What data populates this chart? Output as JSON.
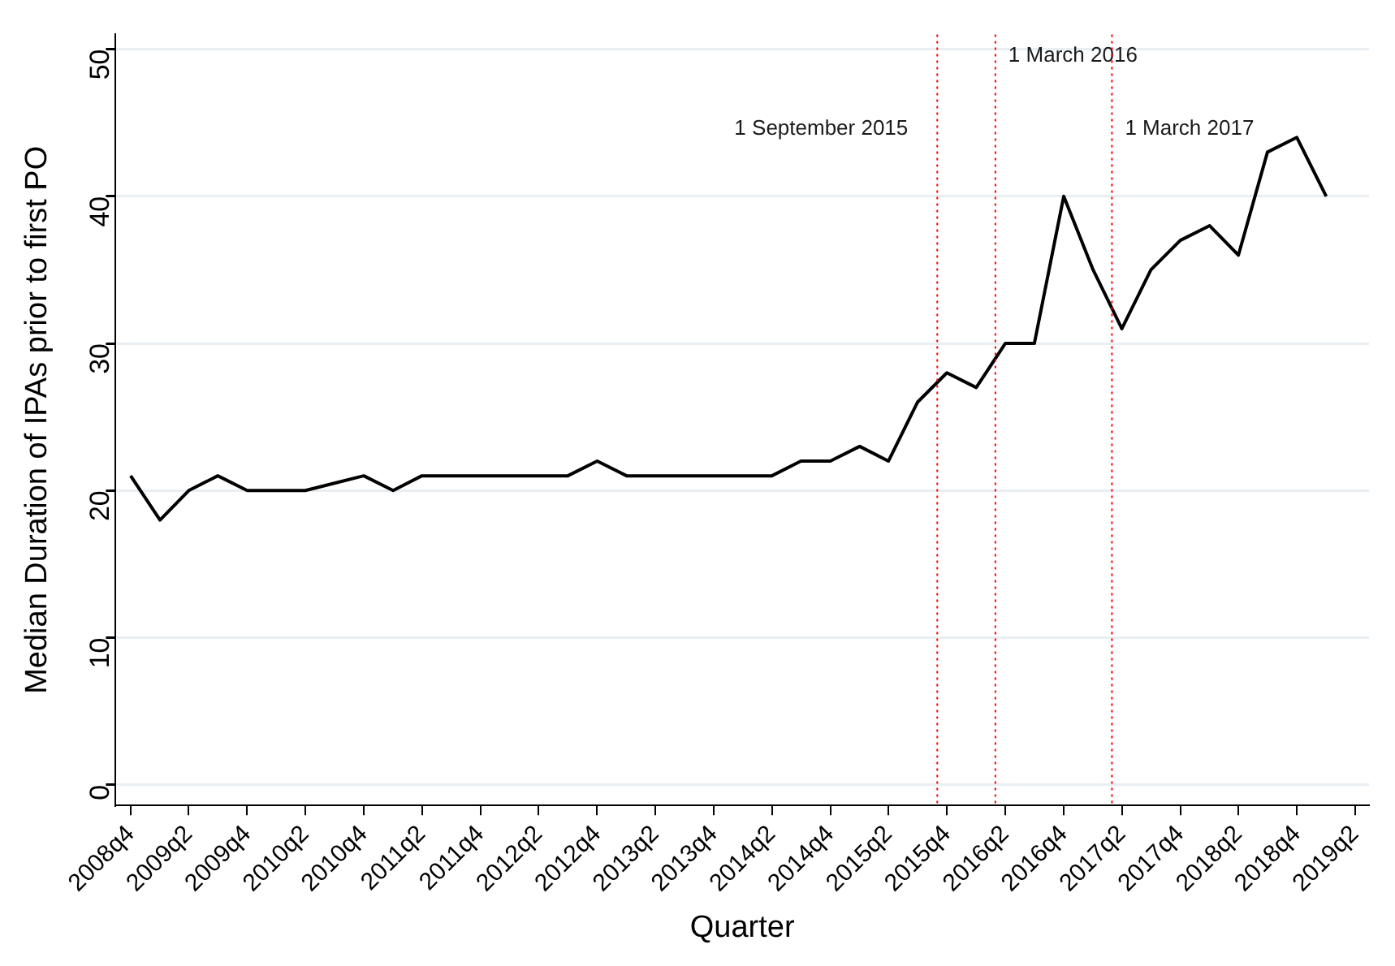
{
  "chart_data": {
    "type": "line",
    "xlabel": "Quarter",
    "ylabel": "Median Duration of IPAs prior to first PO",
    "x": [
      "2008-10",
      "2009-01",
      "2009-04",
      "2009-07",
      "2009-10",
      "2010-01",
      "2010-04",
      "2010-07",
      "2010-10",
      "2011-01",
      "2011-04",
      "2011-07",
      "2011-10",
      "2012-01",
      "2012-04",
      "2012-07",
      "2012-10",
      "2013-01",
      "2013-04",
      "2013-07",
      "2013-10",
      "2014-01",
      "2014-04",
      "2014-07",
      "2014-10",
      "2015-01",
      "2015-04",
      "2015-07",
      "2015-10",
      "2016-01",
      "2016-04",
      "2016-07",
      "2016-10",
      "2017-01",
      "2017-04",
      "2017-07",
      "2017-10",
      "2018-01",
      "2018-04",
      "2018-07",
      "2018-10",
      "2019-01"
    ],
    "series": [
      {
        "color": "#000000",
        "values": [
          21,
          18,
          20,
          21,
          20,
          20,
          20,
          20.5,
          21,
          20,
          21,
          21,
          21,
          21,
          21,
          21,
          22,
          21,
          21,
          21,
          21,
          21,
          21,
          22,
          22,
          23,
          22,
          26,
          28,
          27,
          30,
          30,
          40,
          35,
          31,
          35,
          37,
          38,
          36,
          43,
          44,
          40
        ]
      }
    ],
    "xlim": [
      "2008-08-15",
      "2019-05-15"
    ],
    "xticks": [
      {
        "value": "2008-10",
        "label": "2008q4"
      },
      {
        "value": "2009-04",
        "label": "2009q2"
      },
      {
        "value": "2009-10",
        "label": "2009q4"
      },
      {
        "value": "2010-04",
        "label": "2010q2"
      },
      {
        "value": "2010-10",
        "label": "2010q4"
      },
      {
        "value": "2011-04",
        "label": "2011q2"
      },
      {
        "value": "2011-10",
        "label": "2011q4"
      },
      {
        "value": "2012-04",
        "label": "2012q2"
      },
      {
        "value": "2012-10",
        "label": "2012q4"
      },
      {
        "value": "2013-04",
        "label": "2013q2"
      },
      {
        "value": "2013-10",
        "label": "2013q4"
      },
      {
        "value": "2014-04",
        "label": "2014q2"
      },
      {
        "value": "2014-10",
        "label": "2014q4"
      },
      {
        "value": "2015-04",
        "label": "2015q2"
      },
      {
        "value": "2015-10",
        "label": "2015q4"
      },
      {
        "value": "2016-04",
        "label": "2016q2"
      },
      {
        "value": "2016-10",
        "label": "2016q4"
      },
      {
        "value": "2017-04",
        "label": "2017q2"
      },
      {
        "value": "2017-10",
        "label": "2017q4"
      },
      {
        "value": "2018-04",
        "label": "2018q2"
      },
      {
        "value": "2018-10",
        "label": "2018q4"
      },
      {
        "value": "2019-04",
        "label": "2019q2"
      }
    ],
    "ylim": [
      -1.4,
      51
    ],
    "yticks": [
      0,
      10,
      20,
      30,
      40,
      50
    ],
    "ref_lines": [
      {
        "axis": "x",
        "value": "2015-09-01",
        "label": "1 September 2015",
        "color": "#ff0000",
        "line_style": "dotted"
      },
      {
        "axis": "x",
        "value": "2016-03-01",
        "label": "1 March 2016",
        "color": "#ff0000",
        "line_style": "dotted"
      },
      {
        "axis": "x",
        "value": "2017-03-01",
        "label": "1 March 2017",
        "color": "#ff0000",
        "line_style": "dotted"
      }
    ],
    "grid": "y",
    "legend": false,
    "marker": "none",
    "line_style": "solid"
  }
}
